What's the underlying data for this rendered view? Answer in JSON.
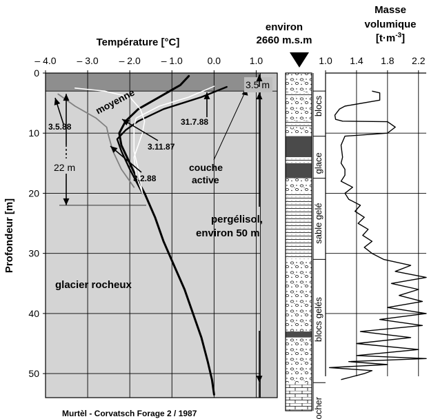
{
  "caption": "Murtèl - Corvatsch  Forage 2 / 1987",
  "chart_data": [
    {
      "type": "line",
      "title": "",
      "xlabel": "Température  [°C]",
      "ylabel": "Profondeur  [m]",
      "xlim": [
        -4.0,
        1.5
      ],
      "ylim": [
        54,
        0
      ],
      "x_ticks": [
        "– 4.0",
        "– 3.0",
        "– 2.0",
        "– 1.0",
        "0.0",
        "1.0"
      ],
      "x_tick_values": [
        -4,
        -3,
        -2,
        -1,
        0,
        1
      ],
      "y_ticks": [
        "0",
        "10",
        "20",
        "30",
        "40",
        "50"
      ],
      "y_tick_values": [
        0,
        10,
        20,
        30,
        40,
        50
      ],
      "grid": true,
      "series": [
        {
          "name": "moyenne",
          "color": "#000000",
          "points": [
            [
              -0.6,
              0.5
            ],
            [
              -0.8,
              2
            ],
            [
              -1.3,
              4
            ],
            [
              -1.8,
              6
            ],
            [
              -2.1,
              8
            ],
            [
              -2.25,
              10
            ],
            [
              -2.2,
              12
            ],
            [
              -2.0,
              15
            ],
            [
              -1.8,
              18
            ],
            [
              -1.65,
              20
            ],
            [
              -1.4,
              24
            ],
            [
              -1.2,
              28
            ],
            [
              -0.95,
              32
            ],
            [
              -0.7,
              36
            ],
            [
              -0.5,
              40
            ],
            [
              -0.3,
              44
            ],
            [
              -0.15,
              48
            ],
            [
              -0.05,
              51
            ],
            [
              0.0,
              53.5
            ]
          ]
        },
        {
          "name": "31.7.88",
          "color": "#000000",
          "points": [
            [
              0.3,
              2.3
            ],
            [
              -0.3,
              4
            ],
            [
              -1.2,
              6
            ],
            [
              -1.8,
              8
            ],
            [
              -2.1,
              9.5
            ],
            [
              -2.3,
              11
            ],
            [
              -2.2,
              13
            ],
            [
              -2.0,
              16
            ],
            [
              -1.7,
              20
            ]
          ]
        },
        {
          "name": "3.11.87",
          "color": "#ffffff",
          "points": [
            [
              0.0,
              2.2
            ],
            [
              -0.6,
              4
            ],
            [
              -1.3,
              5.5
            ],
            [
              -1.85,
              7.5
            ],
            [
              -1.9,
              9
            ],
            [
              -1.9,
              11
            ],
            [
              -1.9,
              13
            ],
            [
              -1.8,
              16
            ],
            [
              -1.7,
              20
            ]
          ]
        },
        {
          "name": "3.2.88",
          "color": "#ffffff",
          "points": [
            [
              -3.3,
              2.5
            ],
            [
              -2.6,
              3
            ],
            [
              -2.0,
              4
            ],
            [
              -1.75,
              6
            ],
            [
              -1.65,
              8
            ],
            [
              -1.7,
              10
            ],
            [
              -1.8,
              12
            ],
            [
              -1.9,
              14
            ],
            [
              -1.85,
              17
            ],
            [
              -1.7,
              20
            ]
          ]
        },
        {
          "name": "3.5.88",
          "color": "#808080",
          "points": [
            [
              -3.7,
              3.5
            ],
            [
              -3.3,
              5.5
            ],
            [
              -2.8,
              7.5
            ],
            [
              -2.55,
              9
            ],
            [
              -2.5,
              10.5
            ],
            [
              -2.4,
              13
            ],
            [
              -2.2,
              16
            ],
            [
              -1.9,
              19
            ]
          ]
        }
      ],
      "annotations": [
        {
          "text": "moyenne"
        },
        {
          "text": "3.5.88"
        },
        {
          "text": "3.11.87"
        },
        {
          "text": "3.2.88"
        },
        {
          "text": "31.7.88"
        },
        {
          "text": "couche"
        },
        {
          "text": "active"
        },
        {
          "text": "22 m"
        },
        {
          "text": "3.5 m"
        },
        {
          "text": "pergélisol,"
        },
        {
          "text": "environ 50 m"
        },
        {
          "text": "glacier rocheux"
        }
      ]
    },
    {
      "type": "line",
      "title": "Masse volumique [t·m-3]",
      "title_lines": [
        "Masse",
        "volumique",
        "[t·m",
        "-3",
        "]"
      ],
      "xlim": [
        1.0,
        2.3
      ],
      "ylim": [
        54,
        0
      ],
      "x_ticks": [
        "1.0",
        "1.4",
        "1.8",
        "2.2"
      ],
      "x_tick_values": [
        1.0,
        1.4,
        1.8,
        2.2
      ],
      "grid": true,
      "series": [
        {
          "name": "",
          "color": "#000000",
          "points": [
            [
              1.6,
              3
            ],
            [
              1.7,
              3.3
            ],
            [
              1.7,
              4.5
            ],
            [
              1.25,
              5.5
            ],
            [
              1.18,
              6
            ],
            [
              1.12,
              7
            ],
            [
              1.13,
              7.7
            ],
            [
              1.22,
              8
            ],
            [
              1.8,
              8.1
            ],
            [
              1.9,
              9
            ],
            [
              1.8,
              10
            ],
            [
              1.25,
              10.5
            ],
            [
              1.2,
              12
            ],
            [
              1.22,
              14
            ],
            [
              1.2,
              15
            ],
            [
              1.25,
              16
            ],
            [
              1.25,
              17
            ],
            [
              1.2,
              18
            ],
            [
              1.35,
              19
            ],
            [
              1.25,
              20
            ],
            [
              1.3,
              21
            ],
            [
              1.45,
              22
            ],
            [
              1.38,
              23
            ],
            [
              1.5,
              24
            ],
            [
              1.42,
              25
            ],
            [
              1.55,
              26
            ],
            [
              1.48,
              27
            ],
            [
              1.6,
              28
            ],
            [
              1.5,
              29
            ],
            [
              1.6,
              30
            ],
            [
              1.75,
              31
            ],
            [
              2.1,
              32
            ],
            [
              1.9,
              33
            ],
            [
              2.3,
              34
            ],
            [
              1.85,
              35
            ],
            [
              2.2,
              36
            ],
            [
              1.95,
              37
            ],
            [
              2.25,
              38
            ],
            [
              1.8,
              39
            ],
            [
              2.3,
              40
            ],
            [
              1.7,
              41
            ],
            [
              2.25,
              42
            ],
            [
              1.45,
              43
            ],
            [
              2.1,
              44
            ],
            [
              1.4,
              45
            ],
            [
              2.2,
              46
            ],
            [
              1.4,
              47
            ],
            [
              2.3,
              47.5
            ],
            [
              1.3,
              48
            ],
            [
              1.8,
              48.5
            ],
            [
              1.05,
              49
            ],
            [
              1.6,
              49.5
            ],
            [
              1.5,
              50
            ],
            [
              1.2,
              51
            ]
          ]
        }
      ]
    }
  ],
  "lithology": {
    "header_lines": [
      "environ",
      "2660 m.s.m"
    ],
    "layers": [
      {
        "label": "blocs"
      },
      {
        "label": "glace"
      },
      {
        "label": "sable gelé"
      },
      {
        "label": "blocs gelés"
      },
      {
        "label": "rocher"
      }
    ]
  }
}
